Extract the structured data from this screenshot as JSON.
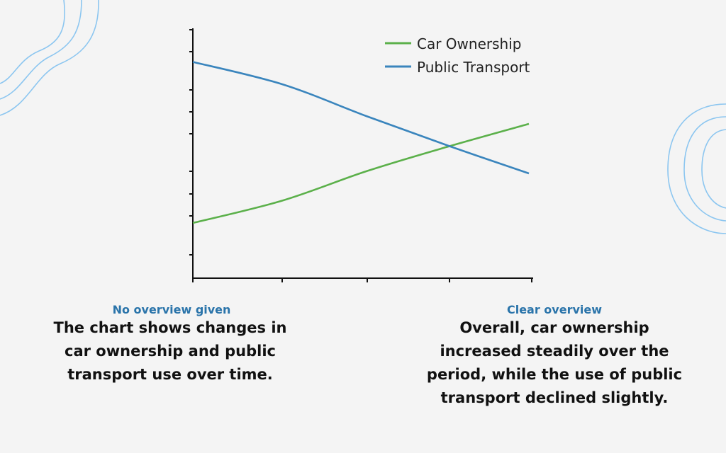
{
  "chart_data": {
    "type": "line",
    "title": "",
    "xlabel": "",
    "ylabel": "",
    "x": [
      0,
      1,
      2,
      3,
      4
    ],
    "ylim": [
      0,
      100
    ],
    "grid": false,
    "legend_position": "top-right",
    "series": [
      {
        "name": "Car Ownership",
        "color": "#5bb04a",
        "values": [
          22,
          31,
          43,
          53,
          62
        ]
      },
      {
        "name": "Public Transport",
        "color": "#3a85bd",
        "values": [
          87,
          78,
          65,
          53,
          42
        ]
      }
    ]
  },
  "left": {
    "label": "No overview given",
    "text": "The chart shows changes in car ownership and public transport use over time."
  },
  "right": {
    "label": "Clear overview",
    "text": "Overall, car ownership increased steadily over the period, while the use of public transport declined slightly."
  },
  "colors": {
    "label": "#2a74aa",
    "decoration": "#8cc6f0"
  }
}
